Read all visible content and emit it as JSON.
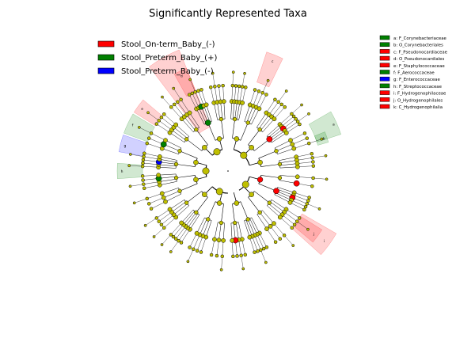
{
  "chart_data": {
    "type": "cladogram",
    "title": "Significantly Represented Taxa",
    "groups": [
      {
        "name": "Stool_On-term_Baby_(-)",
        "color": "#ff0000"
      },
      {
        "name": "Stool_Preterm_Baby_(+)",
        "color": "#008000"
      },
      {
        "name": "Stool_Preterm_Baby_(-)",
        "color": "#0000ff"
      }
    ],
    "taxa": [
      {
        "key": "a",
        "label": "a: F_Corynebacteriaceae",
        "group": "Stool_Preterm_Baby_(+)",
        "color": "#008000"
      },
      {
        "key": "b",
        "label": "b: O_Corynebacteriales",
        "group": "Stool_Preterm_Baby_(+)",
        "color": "#008000"
      },
      {
        "key": "c",
        "label": "c: F_Pseudonocardiaceae",
        "group": "Stool_On-term_Baby_(-)",
        "color": "#ff0000"
      },
      {
        "key": "d",
        "label": "d: O_Pseudonocardiales",
        "group": "Stool_On-term_Baby_(-)",
        "color": "#ff0000"
      },
      {
        "key": "e",
        "label": "e: F_Staphylococcaceae",
        "group": "Stool_On-term_Baby_(-)",
        "color": "#ff0000"
      },
      {
        "key": "f",
        "label": "f: F_Aerococcaceae",
        "group": "Stool_Preterm_Baby_(+)",
        "color": "#008000"
      },
      {
        "key": "g",
        "label": "g: F_Enterococcaceae",
        "group": "Stool_Preterm_Baby_(-)",
        "color": "#0000ff"
      },
      {
        "key": "h",
        "label": "h: F_Streptococcaceae",
        "group": "Stool_Preterm_Baby_(+)",
        "color": "#008000"
      },
      {
        "key": "i",
        "label": "i: F_Hydrogenophilaceae",
        "group": "Stool_On-term_Baby_(-)",
        "color": "#ff0000"
      },
      {
        "key": "j",
        "label": "j: O_Hydrogenophilales",
        "group": "Stool_On-term_Baby_(-)",
        "color": "#ff0000"
      },
      {
        "key": "k",
        "label": "k: C_Hydrogenophilalia",
        "group": "Stool_On-term_Baby_(-)",
        "color": "#ff0000"
      }
    ],
    "highlighted_clades": [
      {
        "label": "Stool_On-term_Baby_(-)",
        "color": "#ff0000"
      },
      {
        "label": "a",
        "color": "#008000"
      },
      {
        "label": "b",
        "color": "#008000"
      },
      {
        "label": "c",
        "color": "#ff0000"
      },
      {
        "label": "d",
        "color": "#ff0000"
      },
      {
        "label": "e",
        "color": "#ff0000"
      },
      {
        "label": "f",
        "color": "#008000"
      },
      {
        "label": "g",
        "color": "#0000ff"
      },
      {
        "label": "h",
        "color": "#008000"
      },
      {
        "label": "i",
        "color": "#ff0000"
      },
      {
        "label": "j",
        "color": "#ff0000"
      },
      {
        "label": "k",
        "color": "#ff0000"
      }
    ],
    "node_default_color": "#bfbf00"
  }
}
